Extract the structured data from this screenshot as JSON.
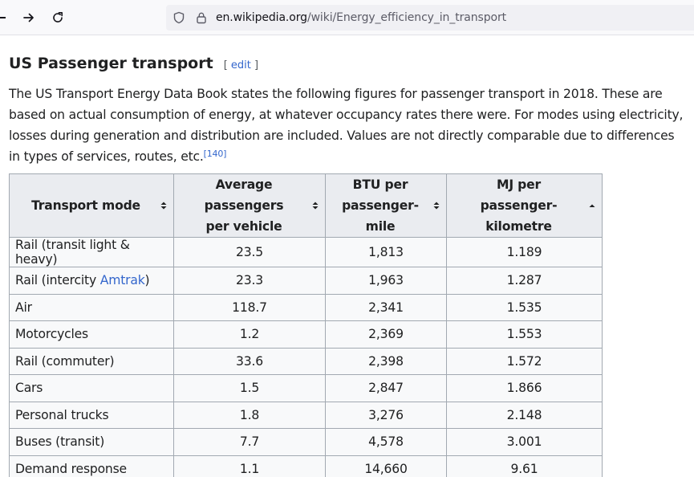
{
  "browser": {
    "url_host": "en.wikipedia.org",
    "url_path": "/wiki/Energy_efficiency_in_transport",
    "icons": [
      "forward-arrow-icon",
      "reload-icon",
      "shield-icon",
      "lock-icon"
    ]
  },
  "article": {
    "heading": "US Passenger transport",
    "edit_open": "[",
    "edit_label": "edit",
    "edit_close": "]",
    "paragraph": "The US Transport Energy Data Book states the following figures for passenger transport in 2018. These are based on actual consumption of energy, at whatever occupancy rates there were. For modes using electricity, losses during generation and distribution are included. Values are not directly comparable due to differences in types of services, routes, etc.",
    "citation": "[140]"
  },
  "table": {
    "headers": [
      {
        "line1": "Transport mode",
        "line2": "",
        "sort": "unsorted"
      },
      {
        "line1": "Average passengers",
        "line2": "per vehicle",
        "sort": "unsorted"
      },
      {
        "line1": "BTU per",
        "line2": "passenger-mile",
        "sort": "unsorted"
      },
      {
        "line1": "MJ per",
        "line2": "passenger-kilometre",
        "sort": "ascending"
      }
    ],
    "rows": [
      {
        "mode": "Rail (transit light & heavy)",
        "mode_link": "",
        "mode_suffix": "",
        "avg": "23.5",
        "btu": "1,813",
        "mj": "1.189"
      },
      {
        "mode": "Rail (intercity ",
        "mode_link": "Amtrak",
        "mode_suffix": ")",
        "avg": "23.3",
        "btu": "1,963",
        "mj": "1.287"
      },
      {
        "mode": "Air",
        "mode_link": "",
        "mode_suffix": "",
        "avg": "118.7",
        "btu": "2,341",
        "mj": "1.535"
      },
      {
        "mode": "Motorcycles",
        "mode_link": "",
        "mode_suffix": "",
        "avg": "1.2",
        "btu": "2,369",
        "mj": "1.553"
      },
      {
        "mode": "Rail (commuter)",
        "mode_link": "",
        "mode_suffix": "",
        "avg": "33.6",
        "btu": "2,398",
        "mj": "1.572"
      },
      {
        "mode": "Cars",
        "mode_link": "",
        "mode_suffix": "",
        "avg": "1.5",
        "btu": "2,847",
        "mj": "1.866"
      },
      {
        "mode": "Personal trucks",
        "mode_link": "",
        "mode_suffix": "",
        "avg": "1.8",
        "btu": "3,276",
        "mj": "2.148"
      },
      {
        "mode": "Buses (transit)",
        "mode_link": "",
        "mode_suffix": "",
        "avg": "7.7",
        "btu": "4,578",
        "mj": "3.001"
      },
      {
        "mode": "Demand response",
        "mode_link": "",
        "mode_suffix": "",
        "avg": "1.1",
        "btu": "14,660",
        "mj": "9.61"
      }
    ]
  },
  "colors": {
    "link": "#3366cc",
    "header_bg": "#eaecf0",
    "cell_bg": "#f8f9fa",
    "border": "#a2a9b1"
  }
}
